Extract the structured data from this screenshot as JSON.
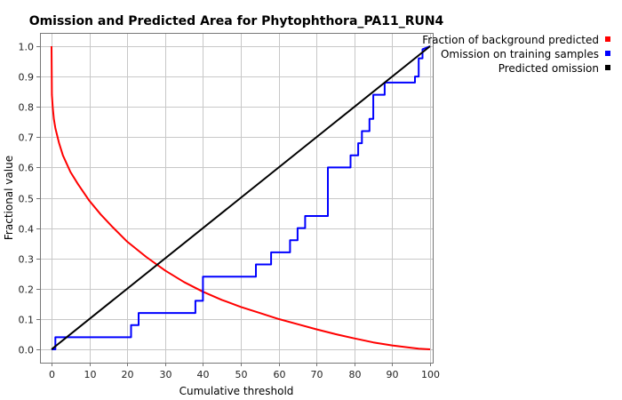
{
  "chart_data": {
    "type": "line",
    "title": "Omission and Predicted Area for Phytophthora_PA11_RUN4",
    "xlabel": "Cumulative threshold",
    "ylabel": "Fractional value",
    "xlim": [
      0,
      100
    ],
    "ylim": [
      0,
      1.0
    ],
    "x_ticks": [
      0,
      10,
      20,
      30,
      40,
      50,
      60,
      70,
      80,
      90,
      100
    ],
    "y_ticks": [
      0.0,
      0.1,
      0.2,
      0.3,
      0.4,
      0.5,
      0.6,
      0.7,
      0.8,
      0.9,
      1.0
    ],
    "x_tick_labels": [
      "0",
      "10",
      "20",
      "30",
      "40",
      "50",
      "60",
      "70",
      "80",
      "90",
      "100"
    ],
    "y_tick_labels": [
      "0.0",
      "0.1",
      "0.2",
      "0.3",
      "0.4",
      "0.5",
      "0.6",
      "0.7",
      "0.8",
      "0.9",
      "1.0"
    ],
    "grid": true,
    "legend_position": "top-right-outside",
    "series": [
      {
        "name": "Fraction of background predicted",
        "color": "#ff0000",
        "x": [
          0,
          0.1,
          0.3,
          0.6,
          1,
          2,
          3,
          5,
          7,
          10,
          13,
          16,
          20,
          25,
          30,
          35,
          40,
          45,
          50,
          55,
          60,
          65,
          70,
          75,
          80,
          85,
          90,
          95,
          97,
          99,
          100
        ],
        "y": [
          1.0,
          0.84,
          0.8,
          0.76,
          0.73,
          0.68,
          0.64,
          0.585,
          0.545,
          0.49,
          0.445,
          0.405,
          0.355,
          0.305,
          0.26,
          0.222,
          0.19,
          0.163,
          0.14,
          0.12,
          0.1,
          0.083,
          0.066,
          0.05,
          0.036,
          0.023,
          0.013,
          0.005,
          0.002,
          0.001,
          0.0
        ]
      },
      {
        "name": "Omission on training samples",
        "color": "#0000ff",
        "x": [
          0,
          1,
          1,
          21,
          21,
          23,
          23,
          38,
          38,
          40,
          40,
          54,
          54,
          58,
          58,
          63,
          63,
          65,
          65,
          67,
          67,
          73,
          73,
          79,
          79,
          81,
          81,
          82,
          82,
          84,
          84,
          85,
          85,
          88,
          88,
          96,
          96,
          97,
          97,
          98,
          98,
          100
        ],
        "y": [
          0,
          0,
          0.04,
          0.04,
          0.08,
          0.08,
          0.12,
          0.12,
          0.16,
          0.16,
          0.24,
          0.24,
          0.28,
          0.28,
          0.32,
          0.32,
          0.36,
          0.36,
          0.4,
          0.4,
          0.44,
          0.44,
          0.6,
          0.6,
          0.64,
          0.64,
          0.68,
          0.68,
          0.72,
          0.72,
          0.76,
          0.76,
          0.84,
          0.84,
          0.88,
          0.88,
          0.9,
          0.9,
          0.96,
          0.96,
          0.99,
          1.0
        ]
      },
      {
        "name": "Predicted omission",
        "color": "#000000",
        "x": [
          0,
          100
        ],
        "y": [
          0,
          1.0
        ]
      }
    ]
  }
}
